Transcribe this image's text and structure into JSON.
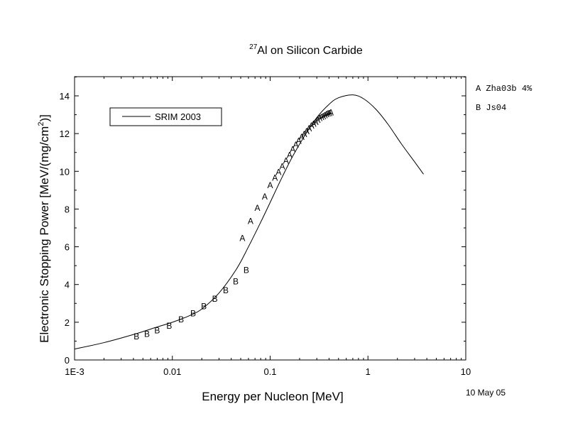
{
  "chart_data": {
    "type": "scatter",
    "title": {
      "superscript": "27",
      "text": "Al on Silicon Carbide"
    },
    "xlabel": "Energy per Nucleon [MeV]",
    "ylabel": {
      "text": "Electronic Stopping Power [MeV/(mg/cm",
      "superscript": "2",
      "suffix": ")]"
    },
    "x_scale": "log",
    "xlim": [
      0.001,
      10
    ],
    "ylim": [
      0,
      15
    ],
    "x_ticks": [
      {
        "value": 0.001,
        "label": "1E-3"
      },
      {
        "value": 0.01,
        "label": "0.01"
      },
      {
        "value": 0.1,
        "label": "0.1"
      },
      {
        "value": 1,
        "label": "1"
      },
      {
        "value": 10,
        "label": "10"
      }
    ],
    "y_ticks": [
      {
        "value": 0,
        "label": "0"
      },
      {
        "value": 2,
        "label": "2"
      },
      {
        "value": 4,
        "label": "4"
      },
      {
        "value": 6,
        "label": "6"
      },
      {
        "value": 8,
        "label": "8"
      },
      {
        "value": 10,
        "label": "10"
      },
      {
        "value": 12,
        "label": "12"
      },
      {
        "value": 14,
        "label": "14"
      }
    ],
    "legend": {
      "placement": "top-left",
      "entries": [
        "SRIM 2003"
      ]
    },
    "series": [
      {
        "name": "SRIM 2003",
        "style": "line",
        "x": [
          0.001,
          0.002,
          0.004,
          0.007,
          0.01,
          0.015,
          0.02,
          0.03,
          0.045,
          0.06,
          0.08,
          0.1,
          0.13,
          0.17,
          0.22,
          0.3,
          0.4,
          0.5,
          0.7,
          0.9,
          1.2,
          1.6,
          2.2,
          3.0,
          3.7
        ],
        "y": [
          0.58,
          0.92,
          1.35,
          1.75,
          2.0,
          2.35,
          2.7,
          3.55,
          4.8,
          6.0,
          7.3,
          8.35,
          9.6,
          10.8,
          11.8,
          12.85,
          13.55,
          13.9,
          14.05,
          13.85,
          13.3,
          12.5,
          11.45,
          10.5,
          9.85
        ]
      },
      {
        "name": "A",
        "style": "marker",
        "x": [
          0.052,
          0.063,
          0.074,
          0.088,
          0.1,
          0.112,
          0.122,
          0.133,
          0.145,
          0.158,
          0.17,
          0.183,
          0.196,
          0.21,
          0.223,
          0.236,
          0.25,
          0.264,
          0.278,
          0.292,
          0.306,
          0.32,
          0.334,
          0.348,
          0.362,
          0.376,
          0.39,
          0.404,
          0.418
        ],
        "y": [
          6.5,
          7.4,
          8.1,
          8.7,
          9.3,
          9.7,
          10.0,
          10.3,
          10.6,
          10.9,
          11.2,
          11.45,
          11.65,
          11.85,
          12.0,
          12.15,
          12.3,
          12.45,
          12.55,
          12.65,
          12.75,
          12.85,
          12.9,
          12.95,
          13.0,
          13.05,
          13.1,
          13.12,
          13.15
        ]
      },
      {
        "name": "B",
        "style": "marker",
        "x": [
          0.0043,
          0.0055,
          0.007,
          0.0093,
          0.0123,
          0.0163,
          0.021,
          0.0272,
          0.0352,
          0.0445,
          0.057
        ],
        "y": [
          1.28,
          1.42,
          1.6,
          1.85,
          2.18,
          2.5,
          2.88,
          3.28,
          3.72,
          4.2,
          4.8
        ]
      }
    ]
  },
  "side_legend": [
    {
      "symbol": "A",
      "text": "Zha03b 4%"
    },
    {
      "symbol": "B",
      "text": "Js04"
    }
  ],
  "date_stamp": "10 May 05"
}
